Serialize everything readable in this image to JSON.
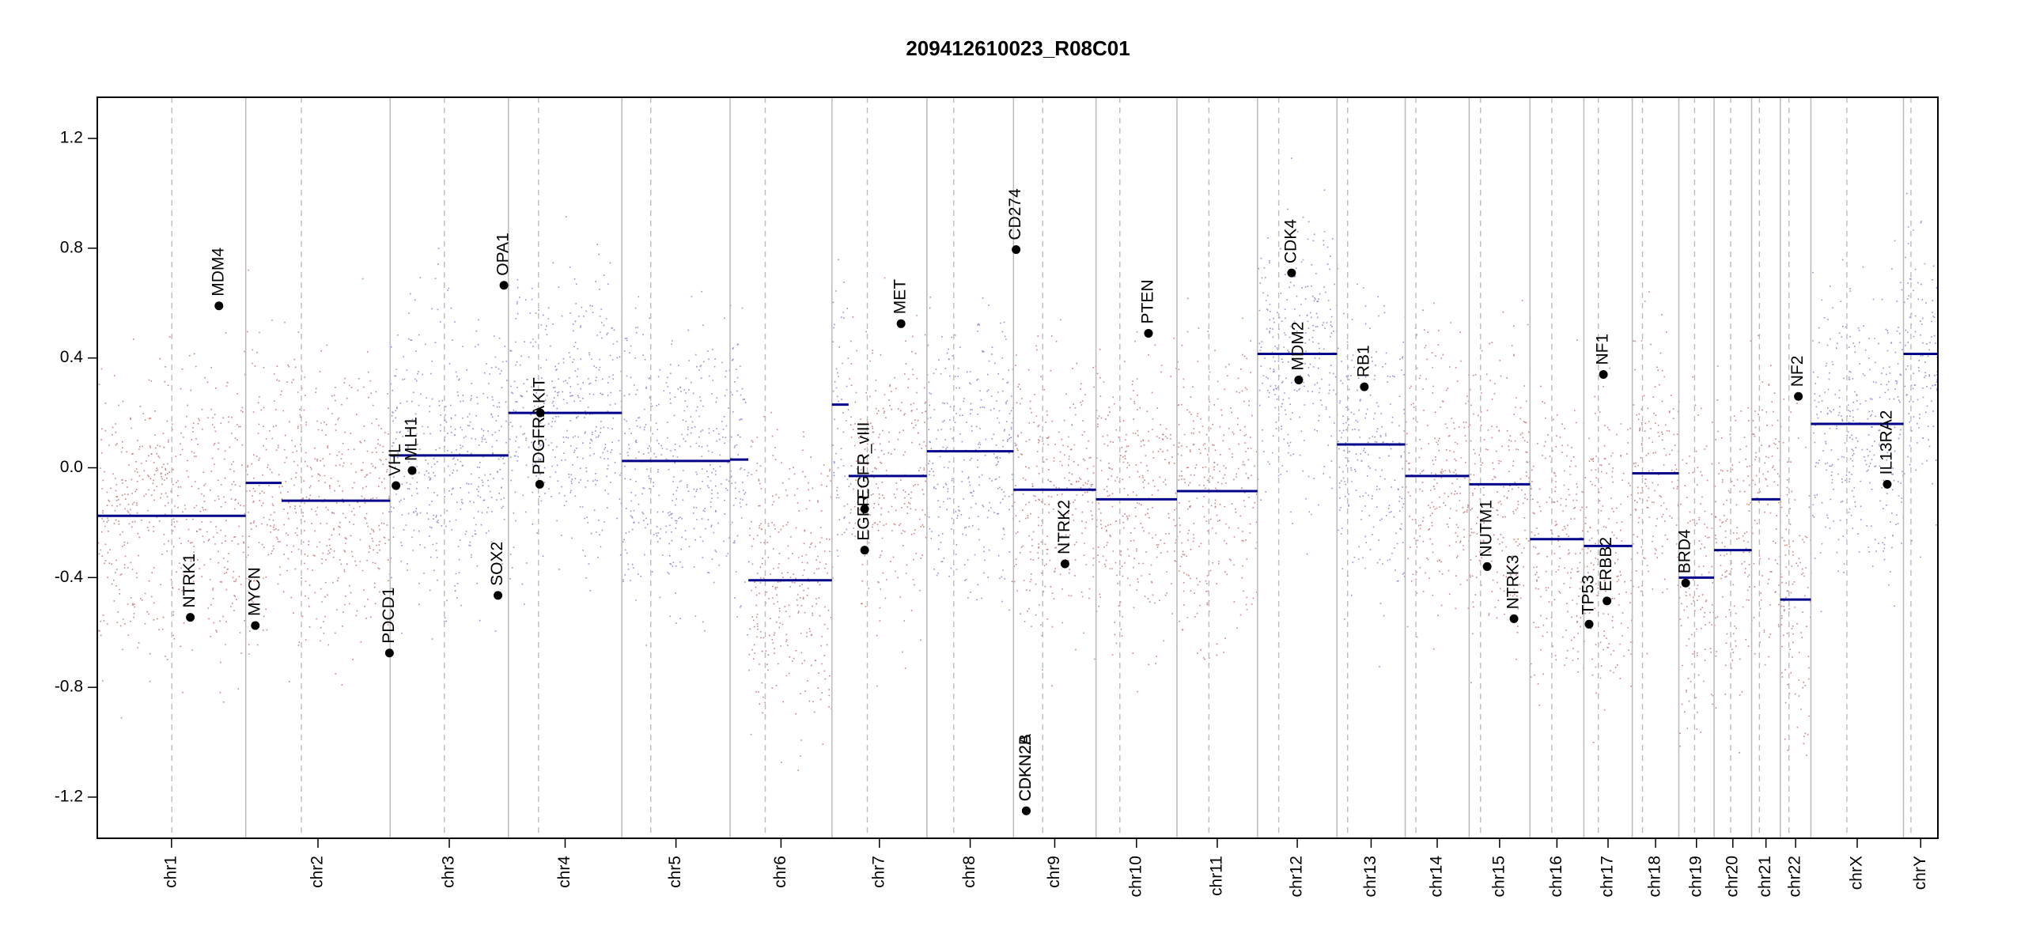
{
  "chart_data": {
    "type": "scatter",
    "title": "209412610023_R08C01",
    "xlabel": "",
    "ylabel": "",
    "ylim": [
      -1.35,
      1.35
    ],
    "y_ticks": [
      {
        "value": 1.2,
        "label": "1.2"
      },
      {
        "value": 0.8,
        "label": "0.8"
      },
      {
        "value": 0.4,
        "label": "0.4"
      },
      {
        "value": 0.0,
        "label": "0.0"
      },
      {
        "value": -0.4,
        "label": "-0.4"
      },
      {
        "value": -0.8,
        "label": "-0.8"
      },
      {
        "value": -1.2,
        "label": "-1.2"
      }
    ],
    "grid": false,
    "colors": {
      "gain": "#00008b",
      "loss": "#8b0000",
      "neutral": "#b0b0b0",
      "segment": "#00008b",
      "boundary": "#bdbdbd",
      "centromere": "#bdbdbd",
      "gene": "#000000"
    },
    "chromosomes": [
      {
        "name": "chr1",
        "start": 0,
        "end": 249.0,
        "centromere": 125.0
      },
      {
        "name": "chr2",
        "start": 249.0,
        "end": 491.2,
        "centromere": 342.3
      },
      {
        "name": "chr3",
        "start": 491.2,
        "end": 689.5,
        "centromere": 582.1
      },
      {
        "name": "chr4",
        "start": 689.5,
        "end": 879.8,
        "centromere": 740.0
      },
      {
        "name": "chr5",
        "start": 879.8,
        "end": 1061.3,
        "centromere": 928.3
      },
      {
        "name": "chr6",
        "start": 1061.3,
        "end": 1232.1,
        "centromere": 1120.3
      },
      {
        "name": "chr7",
        "start": 1232.1,
        "end": 1391.4,
        "centromere": 1291.4
      },
      {
        "name": "chr8",
        "start": 1391.4,
        "end": 1536.6,
        "centromere": 1436.4
      },
      {
        "name": "chr9",
        "start": 1536.6,
        "end": 1675.0,
        "centromere": 1585.6
      },
      {
        "name": "chr10",
        "start": 1675.0,
        "end": 1810.8,
        "centromere": 1715.0
      },
      {
        "name": "chr11",
        "start": 1810.8,
        "end": 1945.9,
        "centromere": 1864.3
      },
      {
        "name": "chr12",
        "start": 1945.9,
        "end": 2079.2,
        "centromere": 1981.4
      },
      {
        "name": "chr13",
        "start": 2079.2,
        "end": 2193.6,
        "centromere": 2097.0
      },
      {
        "name": "chr14",
        "start": 2193.6,
        "end": 2300.9,
        "centromere": 2211.5
      },
      {
        "name": "chr15",
        "start": 2300.9,
        "end": 2402.9,
        "centromere": 2319.9
      },
      {
        "name": "chr16",
        "start": 2402.9,
        "end": 2493.2,
        "centromere": 2439.5
      },
      {
        "name": "chr17",
        "start": 2493.2,
        "end": 2574.4,
        "centromere": 2517.5
      },
      {
        "name": "chr18",
        "start": 2574.4,
        "end": 2652.5,
        "centromere": 2591.5
      },
      {
        "name": "chr19",
        "start": 2652.5,
        "end": 2711.6,
        "centromere": 2678.9
      },
      {
        "name": "chr20",
        "start": 2711.6,
        "end": 2774.6,
        "centromere": 2739.5
      },
      {
        "name": "chr21",
        "start": 2774.6,
        "end": 2822.7,
        "centromere": 2787.6
      },
      {
        "name": "chr22",
        "start": 2822.7,
        "end": 2874.0,
        "centromere": 2837.2
      },
      {
        "name": "chrX",
        "start": 2874.0,
        "end": 3029.3,
        "centromere": 2934.3
      },
      {
        "name": "chrY",
        "start": 3029.3,
        "end": 3087.0,
        "centromere": 3041.8
      }
    ],
    "segments": [
      {
        "chrom": "chr1",
        "x0": 0,
        "x1": 249.0,
        "y": -0.175
      },
      {
        "chrom": "chr2",
        "x0": 249.0,
        "x1": 309.0,
        "y": -0.055
      },
      {
        "chrom": "chr2",
        "x0": 309.0,
        "x1": 491.2,
        "y": -0.12
      },
      {
        "chrom": "chr3",
        "x0": 491.2,
        "x1": 689.5,
        "y": 0.045
      },
      {
        "chrom": "chr4",
        "x0": 689.5,
        "x1": 879.8,
        "y": 0.2
      },
      {
        "chrom": "chr5",
        "x0": 879.8,
        "x1": 1061.3,
        "y": 0.025
      },
      {
        "chrom": "chr6",
        "x0": 1061.3,
        "x1": 1092.0,
        "y": 0.03
      },
      {
        "chrom": "chr6",
        "x0": 1092.0,
        "x1": 1232.1,
        "y": -0.41
      },
      {
        "chrom": "chr7",
        "x0": 1232.1,
        "x1": 1260.0,
        "y": 0.23
      },
      {
        "chrom": "chr7",
        "x0": 1260.0,
        "x1": 1391.4,
        "y": -0.03
      },
      {
        "chrom": "chr8",
        "x0": 1391.4,
        "x1": 1536.6,
        "y": 0.06
      },
      {
        "chrom": "chr9",
        "x0": 1536.6,
        "x1": 1675.0,
        "y": -0.08
      },
      {
        "chrom": "chr10",
        "x0": 1675.0,
        "x1": 1810.8,
        "y": -0.115
      },
      {
        "chrom": "chr11",
        "x0": 1810.8,
        "x1": 1945.9,
        "y": -0.085
      },
      {
        "chrom": "chr12",
        "x0": 1945.9,
        "x1": 2079.2,
        "y": 0.415
      },
      {
        "chrom": "chr13",
        "x0": 2079.2,
        "x1": 2193.6,
        "y": 0.085
      },
      {
        "chrom": "chr14",
        "x0": 2193.6,
        "x1": 2300.9,
        "y": -0.03
      },
      {
        "chrom": "chr15",
        "x0": 2300.9,
        "x1": 2402.9,
        "y": -0.06
      },
      {
        "chrom": "chr16",
        "x0": 2402.9,
        "x1": 2493.2,
        "y": -0.26
      },
      {
        "chrom": "chr17",
        "x0": 2493.2,
        "x1": 2574.4,
        "y": -0.285
      },
      {
        "chrom": "chr18",
        "x0": 2574.4,
        "x1": 2652.5,
        "y": -0.02
      },
      {
        "chrom": "chr19",
        "x0": 2652.5,
        "x1": 2711.6,
        "y": -0.4
      },
      {
        "chrom": "chr20",
        "x0": 2711.6,
        "x1": 2774.6,
        "y": -0.3
      },
      {
        "chrom": "chr21",
        "x0": 2774.6,
        "x1": 2822.7,
        "y": -0.115
      },
      {
        "chrom": "chr22",
        "x0": 2822.7,
        "x1": 2874.0,
        "y": -0.48
      },
      {
        "chrom": "chrX",
        "x0": 2874.0,
        "x1": 3029.3,
        "y": 0.16
      },
      {
        "chrom": "chrY",
        "x0": 3029.3,
        "x1": 3087.0,
        "y": 0.415
      }
    ],
    "genes": [
      {
        "name": "NTRK1",
        "x": 156.0,
        "y": -0.545
      },
      {
        "name": "MDM4",
        "x": 204.0,
        "y": 0.59
      },
      {
        "name": "MYCN",
        "x": 265.0,
        "y": -0.575
      },
      {
        "name": "PDCD1",
        "x": 490.0,
        "y": -0.675
      },
      {
        "name": "VHL",
        "x": 501.0,
        "y": -0.065
      },
      {
        "name": "MLH1",
        "x": 528.0,
        "y": -0.01
      },
      {
        "name": "SOX2",
        "x": 672.0,
        "y": -0.465
      },
      {
        "name": "OPA1",
        "x": 682.0,
        "y": 0.665
      },
      {
        "name": "KIT",
        "x": 743.0,
        "y": 0.2
      },
      {
        "name": "PDGFRA",
        "x": 742.0,
        "y": -0.06
      },
      {
        "name": "EGFR",
        "x": 1287.0,
        "y": -0.3
      },
      {
        "name": "EGFR_vIII",
        "x": 1287.0,
        "y": -0.15
      },
      {
        "name": "MET",
        "x": 1348.0,
        "y": 0.525
      },
      {
        "name": "CD274",
        "x": 1541.0,
        "y": 0.795
      },
      {
        "name": "CDKN2A",
        "x": 1558.0,
        "y": -1.25
      },
      {
        "name": "CDKN2B",
        "x": 1558.0,
        "y": -1.25
      },
      {
        "name": "NTRK2",
        "x": 1623.0,
        "y": -0.35
      },
      {
        "name": "PTEN",
        "x": 1763.0,
        "y": 0.49
      },
      {
        "name": "CDK4",
        "x": 2003.0,
        "y": 0.71
      },
      {
        "name": "MDM2",
        "x": 2015.0,
        "y": 0.32
      },
      {
        "name": "RB1",
        "x": 2125.0,
        "y": 0.295
      },
      {
        "name": "NUTM1",
        "x": 2331.0,
        "y": -0.36
      },
      {
        "name": "NTRK3",
        "x": 2376.0,
        "y": -0.55
      },
      {
        "name": "TP53",
        "x": 2502.0,
        "y": -0.57
      },
      {
        "name": "ERBB2",
        "x": 2532.0,
        "y": -0.485
      },
      {
        "name": "NF1",
        "x": 2526.0,
        "y": 0.34
      },
      {
        "name": "BRD4",
        "x": 2664.0,
        "y": -0.42
      },
      {
        "name": "NF2",
        "x": 2853.0,
        "y": 0.26
      },
      {
        "name": "IL13RA2",
        "x": 3002.0,
        "y": -0.06
      }
    ]
  }
}
